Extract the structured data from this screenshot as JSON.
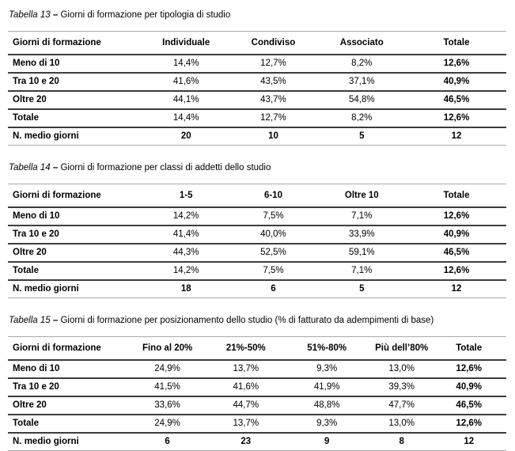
{
  "page": {
    "background": "#ffffff",
    "text_color": "#000000",
    "interior_rule_color": "#3d3d3d",
    "exterior_rule_color": "#a9a9a9"
  },
  "tables": [
    {
      "title": {
        "label": "Tabella 13",
        "sep": "–",
        "text": "Giorni di formazione per tipologia di studio"
      },
      "columns": [
        "Giorni di formazione",
        "Individuale",
        "Condiviso",
        "Associato",
        "Totale"
      ],
      "rows": [
        {
          "label": "Meno di 10",
          "values": [
            "14,4%",
            "12,7%",
            "8,2%",
            "12,6%"
          ]
        },
        {
          "label": "Tra 10 e 20",
          "values": [
            "41,6%",
            "43,5%",
            "37,1%",
            "40,9%"
          ]
        },
        {
          "label": "Oltre 20",
          "values": [
            "44,1%",
            "43,7%",
            "54,8%",
            "46,5%"
          ]
        },
        {
          "label": "Totale",
          "values": [
            "14,4%",
            "12,7%",
            "8,2%",
            "12,6%"
          ]
        },
        {
          "label": "N. medio giorni",
          "values": [
            "20",
            "10",
            "5",
            "12"
          ]
        }
      ]
    },
    {
      "title": {
        "label": "Tabella 14",
        "sep": "–",
        "text": "Giorni di formazione per classi di addetti dello studio"
      },
      "columns": [
        "Giorni di formazione",
        "1-5",
        "6-10",
        "Oltre 10",
        "Totale"
      ],
      "rows": [
        {
          "label": "Meno di 10",
          "values": [
            "14,2%",
            "7,5%",
            "7,1%",
            "12,6%"
          ]
        },
        {
          "label": "Tra 10 e 20",
          "values": [
            "41,4%",
            "40,0%",
            "33,9%",
            "40,9%"
          ]
        },
        {
          "label": "Oltre 20",
          "values": [
            "44,3%",
            "52,5%",
            "59,1%",
            "46,5%"
          ]
        },
        {
          "label": "Totale",
          "values": [
            "14,2%",
            "7,5%",
            "7,1%",
            "12,6%"
          ]
        },
        {
          "label": "N. medio giorni",
          "values": [
            "18",
            "6",
            "5",
            "12"
          ]
        }
      ]
    },
    {
      "title": {
        "label": "Tabella 15",
        "sep": "–",
        "text": "Giorni di formazione per posizionamento dello studio (% di fatturato da adempimenti di base)"
      },
      "columns": [
        "Giorni di formazione",
        "Fino al 20%",
        "21%-50%",
        "51%-80%",
        "Più dell’80%",
        "Totale"
      ],
      "rows": [
        {
          "label": "Meno di 10",
          "values": [
            "24,9%",
            "13,7%",
            "9,3%",
            "13,0%",
            "12,6%"
          ]
        },
        {
          "label": "Tra 10 e 20",
          "values": [
            "41,5%",
            "41,6%",
            "41,9%",
            "39,3%",
            "40,9%"
          ]
        },
        {
          "label": "Oltre 20",
          "values": [
            "33,6%",
            "44,7%",
            "48,8%",
            "47,7%",
            "46,5%"
          ]
        },
        {
          "label": "Totale",
          "values": [
            "24,9%",
            "13,7%",
            "9,3%",
            "13,0%",
            "12,6%"
          ]
        },
        {
          "label": "N. medio giorni",
          "values": [
            "6",
            "23",
            "9",
            "8",
            "12"
          ]
        }
      ]
    }
  ]
}
